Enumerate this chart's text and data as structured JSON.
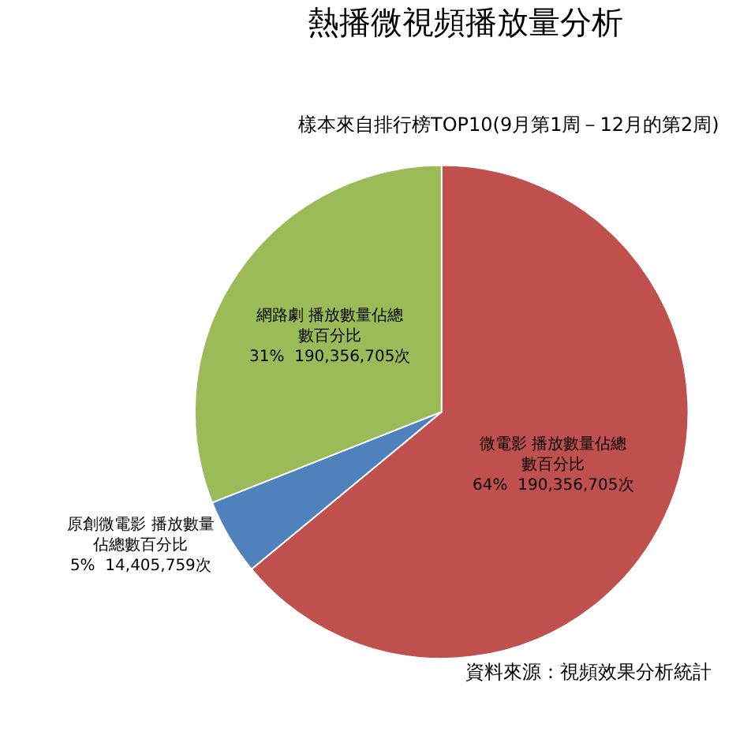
{
  "chart_data": {
    "type": "pie",
    "title": "熱播微視頻播放量分析",
    "subtitle": "樣本來自排行榜TOP10(9月第1周－12月的第2周)",
    "categories": [
      "微電影 播放數量佔總數百分比",
      "原創微電影 播放數量佔總數百分比",
      "網路劇 播放數量佔總數百分比"
    ],
    "values": [
      64,
      5,
      31
    ],
    "value_labels": [
      "64%  190,356,705次",
      "5%  14,405,759次",
      "31%  190,356,705次"
    ],
    "colors": [
      "#c0504d",
      "#4f81bd",
      "#9bbb59"
    ],
    "annotations": [
      "資料來源：視頻效果分析統計"
    ],
    "legend": false
  }
}
